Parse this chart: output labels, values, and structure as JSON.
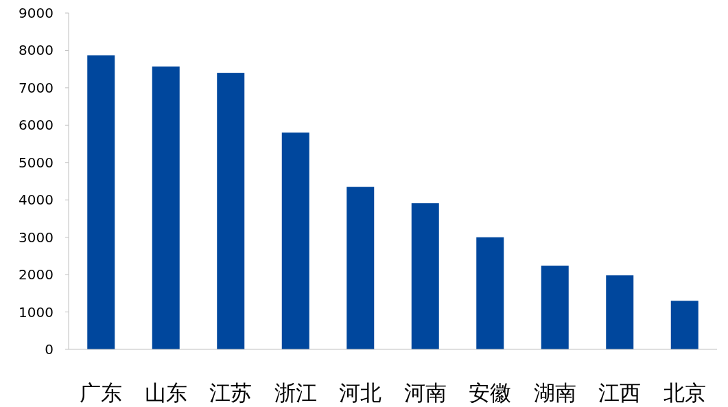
{
  "chart_data": {
    "type": "bar",
    "categories": [
      "广东",
      "山东",
      "江苏",
      "浙江",
      "河北",
      "河南",
      "安徽",
      "湖南",
      "江西",
      "北京"
    ],
    "values": [
      7870,
      7570,
      7400,
      5800,
      4350,
      3910,
      3000,
      2240,
      1980,
      1300
    ],
    "color": "#00479d",
    "ylim": [
      0,
      9000
    ],
    "yticks": [
      0,
      1000,
      2000,
      3000,
      4000,
      5000,
      6000,
      7000,
      8000,
      9000
    ]
  }
}
